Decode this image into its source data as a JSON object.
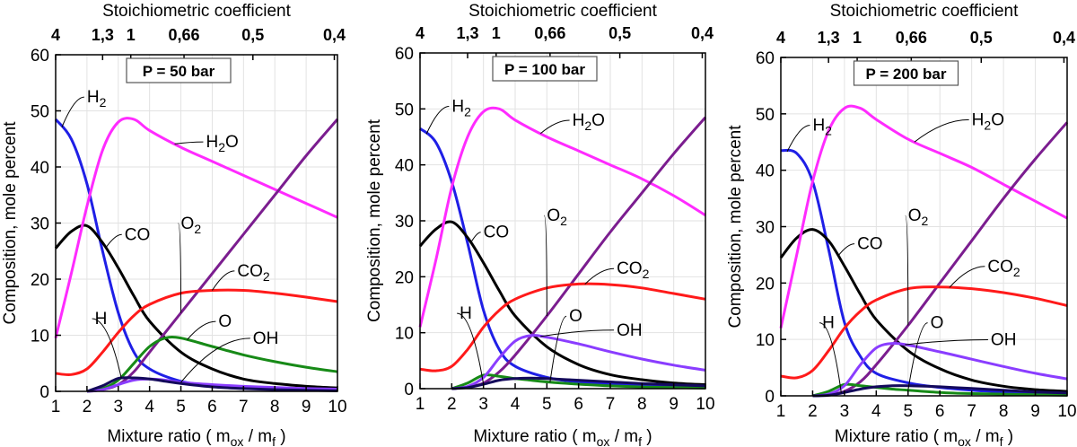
{
  "chart_data": [
    {
      "type": "line",
      "title": "P = 50 bar",
      "xlabel": "Mixture ratio ( m_ox / m_f )",
      "ylabel": "Composition, mole percent",
      "top_axis_label": "Stoichiometric coefficient",
      "top_ticks": [
        "4",
        "1,3",
        "1",
        "0,66",
        "0,5",
        "0,4"
      ],
      "top_tick_positions": [
        1,
        2.5,
        3.4,
        5.1,
        7.3,
        9.9
      ],
      "xlim": [
        1,
        10
      ],
      "ylim": [
        0,
        60
      ],
      "xticks": [
        1,
        2,
        3,
        4,
        5,
        6,
        7,
        8,
        9,
        10
      ],
      "yticks": [
        0,
        10,
        20,
        30,
        40,
        50,
        60
      ],
      "grid": true,
      "series": [
        {
          "name": "H2",
          "color": "#1f1fe6",
          "x": [
            1,
            1.5,
            2,
            2.5,
            3,
            3.5,
            4,
            5,
            6,
            7,
            8,
            9,
            10
          ],
          "y": [
            48.5,
            45,
            37,
            25,
            14,
            7,
            4,
            1.8,
            1,
            0.6,
            0.4,
            0.3,
            0.2
          ]
        },
        {
          "name": "CO",
          "color": "#000000",
          "x": [
            1,
            1.5,
            2,
            2.5,
            3,
            3.5,
            4,
            5,
            6,
            7,
            8,
            9,
            10
          ],
          "y": [
            25.5,
            28.5,
            29.5,
            26.5,
            22,
            17,
            12.5,
            7,
            4,
            2.2,
            1.4,
            0.9,
            0.6
          ]
        },
        {
          "name": "H2O",
          "color": "#ff2bff",
          "x": [
            1,
            1.5,
            2,
            2.5,
            3,
            3.5,
            4,
            5,
            6,
            7,
            8,
            9,
            10
          ],
          "y": [
            9.5,
            21,
            33,
            43,
            48,
            48.5,
            46.5,
            43.5,
            41,
            38.5,
            36,
            33.5,
            31
          ]
        },
        {
          "name": "O2",
          "color": "#7b1d8f",
          "x": [
            2,
            2.5,
            3,
            3.5,
            4,
            5,
            6,
            7,
            8,
            9,
            10
          ],
          "y": [
            0,
            0.3,
            1.2,
            3.5,
            7,
            14,
            21,
            28,
            35,
            42,
            48.5
          ]
        },
        {
          "name": "CO2",
          "color": "#ff1a1a",
          "x": [
            1,
            1.5,
            2,
            2.5,
            3,
            3.5,
            4,
            5,
            6,
            7,
            8,
            9,
            10
          ],
          "y": [
            3.2,
            3,
            4,
            7,
            10.5,
            13.5,
            15.5,
            17.5,
            18,
            18,
            17.5,
            16.8,
            16
          ]
        },
        {
          "name": "O",
          "color": "#178a17",
          "x": [
            2,
            2.5,
            3,
            3.5,
            4,
            4.5,
            5,
            6,
            7,
            8,
            9,
            10
          ],
          "y": [
            0,
            0.5,
            2,
            5,
            8,
            9.5,
            9.5,
            8,
            6.5,
            5.3,
            4.3,
            3.5
          ]
        },
        {
          "name": "OH",
          "color": "#8a3dff",
          "x": [
            2,
            2.5,
            3,
            3.5,
            4,
            4.5,
            5,
            6,
            7,
            8,
            9,
            10
          ],
          "y": [
            0,
            0.3,
            1.2,
            2,
            2.2,
            2,
            1.6,
            1.2,
            0.9,
            0.7,
            0.5,
            0.4
          ]
        },
        {
          "name": "H",
          "color": "#140a5c",
          "x": [
            2,
            2.5,
            3,
            3.5,
            4,
            4.5,
            5,
            6,
            7,
            8,
            9,
            10
          ],
          "y": [
            0,
            1,
            2.3,
            2.4,
            2.2,
            1.8,
            1.4,
            0.8,
            0.5,
            0.3,
            0.2,
            0.1
          ]
        }
      ]
    },
    {
      "type": "line",
      "title": "P = 100 bar",
      "xlabel": "Mixture ratio ( m_ox / m_f )",
      "ylabel": "Composition, mole percent",
      "top_axis_label": "Stoichiometric coefficient",
      "top_ticks": [
        "4",
        "1,3",
        "1",
        "0,66",
        "0,5",
        "0,4"
      ],
      "top_tick_positions": [
        1,
        2.5,
        3.4,
        5.1,
        7.3,
        9.9
      ],
      "xlim": [
        1,
        10
      ],
      "ylim": [
        0,
        60
      ],
      "xticks": [
        1,
        2,
        3,
        4,
        5,
        6,
        7,
        8,
        9,
        10
      ],
      "yticks": [
        0,
        10,
        20,
        30,
        40,
        50,
        60
      ],
      "grid": true,
      "series": [
        {
          "name": "H2",
          "color": "#1f1fe6",
          "x": [
            1,
            1.5,
            2,
            2.5,
            3,
            3.5,
            4,
            5,
            6,
            7,
            8,
            9,
            10
          ],
          "y": [
            46.5,
            44,
            37,
            26,
            14,
            7,
            4,
            2,
            1.2,
            0.8,
            0.5,
            0.4,
            0.3
          ]
        },
        {
          "name": "CO",
          "color": "#000000",
          "x": [
            1,
            1.5,
            2,
            2.5,
            3,
            3.5,
            4,
            5,
            6,
            7,
            8,
            9,
            10
          ],
          "y": [
            25.5,
            28.5,
            29.8,
            27,
            22.5,
            17.5,
            13,
            7.5,
            4.3,
            2.5,
            1.6,
            1,
            0.7
          ]
        },
        {
          "name": "H2O",
          "color": "#ff2bff",
          "x": [
            1,
            1.5,
            2,
            2.5,
            3,
            3.5,
            4,
            5,
            6,
            7,
            8,
            9,
            10
          ],
          "y": [
            11,
            23,
            36,
            45,
            49.5,
            50,
            48,
            45,
            42.5,
            40,
            37.5,
            34.5,
            31
          ]
        },
        {
          "name": "O2",
          "color": "#7b1d8f",
          "x": [
            2,
            2.5,
            3,
            3.5,
            4,
            5,
            6,
            7,
            8,
            9,
            10
          ],
          "y": [
            0,
            0.3,
            1,
            3,
            6,
            13,
            20.5,
            28,
            35,
            42,
            48.5
          ]
        },
        {
          "name": "CO2",
          "color": "#ff1a1a",
          "x": [
            1,
            1.5,
            2,
            2.5,
            3,
            3.5,
            4,
            5,
            6,
            7,
            8,
            9,
            10
          ],
          "y": [
            3.5,
            3.2,
            4,
            7,
            11,
            14,
            16,
            18,
            18.7,
            18.6,
            18,
            17,
            16
          ]
        },
        {
          "name": "O",
          "color": "#178a17",
          "x": [
            2,
            2.5,
            3,
            3.5,
            4,
            4.5,
            5,
            6,
            7,
            8,
            9,
            10
          ],
          "y": [
            0,
            1,
            2.4,
            2.2,
            1.8,
            1.5,
            1.2,
            0.8,
            0.5,
            0.3,
            0.2,
            0.1
          ]
        },
        {
          "name": "OH",
          "color": "#8a3dff",
          "x": [
            2,
            2.5,
            3,
            3.5,
            4,
            4.5,
            5,
            6,
            7,
            8,
            9,
            10
          ],
          "y": [
            0,
            0.4,
            2,
            5.5,
            8.5,
            9.5,
            9.2,
            8,
            6.6,
            5.3,
            4.2,
            3.3
          ]
        },
        {
          "name": "H",
          "color": "#140a5c",
          "x": [
            2,
            2.5,
            3,
            3.5,
            4,
            4.5,
            5,
            6,
            7,
            8,
            9,
            10
          ],
          "y": [
            0,
            0.2,
            0.8,
            1.5,
            1.8,
            1.9,
            1.8,
            1.5,
            1.2,
            0.9,
            0.7,
            0.5
          ]
        }
      ]
    },
    {
      "type": "line",
      "title": "P = 200 bar",
      "xlabel": "Mixture ratio ( m_ox / m_f )",
      "ylabel": "Composition, mole percent",
      "top_axis_label": "Stoichiometric coefficient",
      "top_ticks": [
        "4",
        "1,3",
        "1",
        "0,66",
        "0,5",
        "0,4"
      ],
      "top_tick_positions": [
        1,
        2.5,
        3.4,
        5.1,
        7.3,
        9.9
      ],
      "xlim": [
        1,
        10
      ],
      "ylim": [
        0,
        60
      ],
      "xticks": [
        1,
        2,
        3,
        4,
        5,
        6,
        7,
        8,
        9,
        10
      ],
      "yticks": [
        0,
        10,
        20,
        30,
        40,
        50,
        60
      ],
      "grid": true,
      "series": [
        {
          "name": "H2",
          "color": "#1f1fe6",
          "x": [
            1,
            1.5,
            2,
            2.5,
            3,
            3.5,
            4,
            5,
            6,
            7,
            8,
            9,
            10
          ],
          "y": [
            43.5,
            43,
            38,
            26,
            13,
            7,
            4,
            2.3,
            1.5,
            1,
            0.7,
            0.5,
            0.3
          ]
        },
        {
          "name": "CO",
          "color": "#000000",
          "x": [
            1,
            1.5,
            2,
            2.5,
            3,
            3.5,
            4,
            5,
            6,
            7,
            8,
            9,
            10
          ],
          "y": [
            24.5,
            28,
            29.5,
            27.5,
            23,
            18,
            13.5,
            8,
            4.8,
            2.8,
            1.7,
            1.1,
            0.8
          ]
        },
        {
          "name": "H2O",
          "color": "#ff2bff",
          "x": [
            1,
            1.5,
            2,
            2.5,
            3,
            3.5,
            4,
            5,
            6,
            7,
            8,
            9,
            10
          ],
          "y": [
            12,
            25,
            38,
            47,
            51,
            51,
            49,
            45.5,
            43,
            40.5,
            37.5,
            34.5,
            31.5
          ]
        },
        {
          "name": "O2",
          "color": "#7b1d8f",
          "x": [
            2,
            2.5,
            3,
            3.5,
            4,
            5,
            6,
            7,
            8,
            9,
            10
          ],
          "y": [
            0,
            0.2,
            0.8,
            2.5,
            5.5,
            12.5,
            20,
            27.5,
            35,
            42,
            48.5
          ]
        },
        {
          "name": "CO2",
          "color": "#ff1a1a",
          "x": [
            1,
            1.5,
            2,
            2.5,
            3,
            3.5,
            4,
            5,
            6,
            7,
            8,
            9,
            10
          ],
          "y": [
            3.5,
            3.2,
            4.5,
            8,
            12,
            15,
            17,
            19,
            19.3,
            19,
            18.3,
            17.3,
            16
          ]
        },
        {
          "name": "O",
          "color": "#178a17",
          "x": [
            2,
            2.5,
            3,
            3.5,
            4,
            4.5,
            5,
            6,
            7,
            8,
            9,
            10
          ],
          "y": [
            0,
            0.8,
            2,
            1.8,
            1.5,
            1.2,
            1,
            0.6,
            0.4,
            0.3,
            0.2,
            0.1
          ]
        },
        {
          "name": "OH",
          "color": "#8a3dff",
          "x": [
            2,
            2.5,
            3,
            3.5,
            4,
            4.5,
            5,
            6,
            7,
            8,
            9,
            10
          ],
          "y": [
            0,
            0.3,
            1.8,
            5.5,
            8.5,
            9.3,
            9,
            7.8,
            6.5,
            5.2,
            4,
            3
          ]
        },
        {
          "name": "H",
          "color": "#140a5c",
          "x": [
            2,
            2.5,
            3,
            3.5,
            4,
            4.5,
            5,
            6,
            7,
            8,
            9,
            10
          ],
          "y": [
            0,
            0.1,
            0.6,
            1.2,
            1.6,
            1.8,
            1.8,
            1.6,
            1.3,
            1,
            0.7,
            0.5
          ]
        }
      ]
    }
  ]
}
